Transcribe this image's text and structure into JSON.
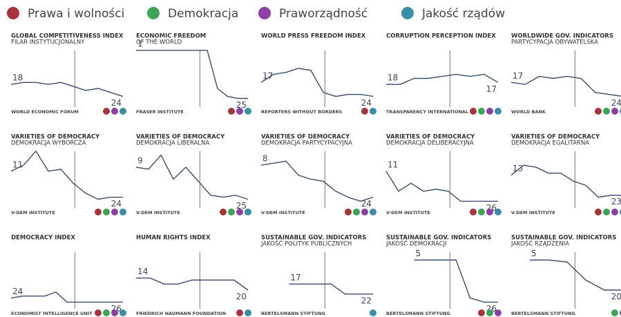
{
  "legend": [
    {
      "name": "Prawa i wolności",
      "color": "#a8343a"
    },
    {
      "name": "Demokracja",
      "color": "#3aa655"
    },
    {
      "name": "Praworządność",
      "color": "#8e3fa3"
    },
    {
      "name": "Jakość rządów",
      "color": "#3a8fa8"
    }
  ],
  "chart_data": [
    {
      "type": "line",
      "title": "GLOBAL COMPETITIVENESS INDEX",
      "subtitle": "FILAR INSTYTUCJONALNY",
      "source": "WORLD ECONOMIC FORUM",
      "values": [
        18,
        17,
        17,
        18,
        17,
        19,
        21,
        20,
        22,
        24
      ],
      "ylim": [
        0,
        30
      ],
      "color": "#3a4a6b",
      "dots": [
        "#a8343a",
        "#8e3fa3",
        "#3a8fa8"
      ]
    },
    {
      "type": "line",
      "title": "ECONOMIC FREEDOM",
      "subtitle": "OF THE WORLD",
      "source": "FRASER INSTITUTE",
      "values": [
        1,
        1,
        1,
        1,
        1,
        1,
        1,
        1,
        20,
        24,
        25,
        25
      ],
      "ylim": [
        0,
        30
      ],
      "color": "#3a4a6b",
      "dots": [
        "#a8343a",
        "#8e3fa3",
        "#3a8fa8"
      ]
    },
    {
      "type": "line",
      "title": "WORLD PRESS FREEDOM INDEX",
      "source": "REPORTERS WITHOUT BORDERS",
      "values": [
        17,
        13,
        12,
        10,
        11,
        22,
        24,
        23,
        23,
        24
      ],
      "ylim": [
        0,
        30
      ],
      "color": "#3a4a6b",
      "dots": [
        "#a8343a",
        "#3a8fa8"
      ]
    },
    {
      "type": "line",
      "title": "CORRUPTION PERCEPTION INDEX",
      "source": "TRANSPARENCY INTERNATIONAL",
      "values": [
        18,
        18,
        15,
        15,
        14,
        13,
        14,
        13,
        17
      ],
      "ylim": [
        0,
        30
      ],
      "color": "#3a4a6b",
      "dots": [
        "#a8343a",
        "#3aa655",
        "#8e3fa3",
        "#3a8fa8"
      ]
    },
    {
      "type": "line",
      "title": "WORLDWIDE GOV. INDICATORS",
      "subtitle": "PARTYCYPACJA OBYWATELSKA",
      "source": "WORLD BANK",
      "values": [
        17,
        18,
        14,
        15,
        14,
        15,
        22,
        23,
        24
      ],
      "ylim": [
        0,
        30
      ],
      "color": "#3a4a6b",
      "dots": [
        "#a8343a",
        "#3aa655",
        "#8e3fa3",
        "#3a8fa8"
      ]
    },
    {
      "type": "line",
      "title": "VARIETIES OF DEMOCRACY",
      "subtitle": "DEMOKRACJA WYBORCZA",
      "source": "V-DEM INSTITUTE",
      "values": [
        11,
        8,
        1,
        11,
        10,
        17,
        22,
        25,
        24,
        24
      ],
      "ylim": [
        0,
        30
      ],
      "color": "#3a4a6b",
      "dots": [
        "#a8343a",
        "#3aa655",
        "#8e3fa3",
        "#3a8fa8"
      ]
    },
    {
      "type": "line",
      "title": "VARIETIES OF DEMOCRACY",
      "subtitle": "DEMOKRACJA LIBERALNA",
      "source": "V-DEM INSTITUTE",
      "values": [
        9,
        10,
        3,
        15,
        9,
        16,
        23,
        24,
        23,
        25
      ],
      "ylim": [
        0,
        30
      ],
      "color": "#3a4a6b",
      "dots": [
        "#a8343a",
        "#3aa655",
        "#8e3fa3",
        "#3a8fa8"
      ]
    },
    {
      "type": "line",
      "title": "VARIETIES OF DEMOCRACY",
      "subtitle": "DEMOKRACJA PARTYCYPACYJNA",
      "source": "V-DEM INSTITUTE",
      "values": [
        8,
        7,
        6,
        13,
        15,
        16,
        21,
        24,
        26,
        24
      ],
      "ylim": [
        0,
        30
      ],
      "color": "#3a4a6b",
      "dots": [
        "#a8343a",
        "#3aa655",
        "#8e3fa3",
        "#3a8fa8"
      ]
    },
    {
      "type": "line",
      "title": "VARIETIES OF DEMOCRACY",
      "subtitle": "DEMOKRACJA DELIBERACYJNA",
      "source": "V-DEM INSTITUTE",
      "values": [
        11,
        21,
        17,
        21,
        20,
        21,
        26,
        26,
        26,
        26
      ],
      "ylim": [
        0,
        30
      ],
      "color": "#3a4a6b",
      "dots": [
        "#a8343a",
        "#3aa655",
        "#8e3fa3",
        "#3a8fa8"
      ]
    },
    {
      "type": "line",
      "title": "VARIETIES OF DEMOCRACY",
      "subtitle": "DEMOKRACJA EGALITARNA",
      "source": "V-DEM INSTITUTE",
      "values": [
        13,
        8,
        9,
        12,
        12,
        16,
        18,
        24,
        23,
        23
      ],
      "ylim": [
        0,
        30
      ],
      "color": "#3a4a6b",
      "dots": [
        "#a8343a",
        "#3aa655",
        "#8e3fa3",
        "#3a8fa8"
      ]
    },
    {
      "type": "line",
      "title": "DEMOCRACY INDEX",
      "source": "ECONOMIST INTELLIGENCE UNIT",
      "values": [
        24,
        23,
        23,
        23,
        21,
        26,
        26,
        26,
        26,
        26,
        26
      ],
      "ylim": [
        0,
        30
      ],
      "color": "#3a4a6b",
      "dots": [
        "#a8343a",
        "#3aa655",
        "#8e3fa3",
        "#3a8fa8"
      ]
    },
    {
      "type": "line",
      "title": "HUMAN RIGHTS INDEX",
      "source": "FRIEDRICH NAUMANN FOUNDATION",
      "values": [
        14,
        14,
        17,
        17,
        15,
        15,
        15,
        15,
        20
      ],
      "ylim": [
        0,
        30
      ],
      "color": "#3a4a6b",
      "dots": [
        "#a8343a",
        "#3a8fa8"
      ]
    },
    {
      "type": "line",
      "title": "SUSTAINABLE GOV. INDICATORS",
      "subtitle": "JAKOŚĆ POLITYK PUBLICZNYCH",
      "source": "BERTELSMANN STIFTUNG",
      "values": [
        null,
        null,
        17,
        17,
        17,
        17,
        22,
        22,
        22
      ],
      "ylim": [
        0,
        30
      ],
      "color": "#3a4a6b",
      "dots": [
        "#3a8fa8"
      ]
    },
    {
      "type": "line",
      "title": "SUSTAINABLE GOV. INDICATORS",
      "subtitle": "JAKOŚĆ DEMOKRACJI",
      "source": "BERTELSMANN STIFTUNG",
      "values": [
        null,
        null,
        5,
        5,
        5,
        5,
        24,
        26,
        26
      ],
      "ylim": [
        0,
        30
      ],
      "color": "#3a4a6b",
      "dots": [
        "#a8343a",
        "#3aa655",
        "#8e3fa3"
      ]
    },
    {
      "type": "line",
      "title": "SUSTAINABLE GOV. INDICATORS",
      "subtitle": "JAKOŚĆ RZĄDZENIA",
      "source": "BERTELSMANN STIFTUNG",
      "values": [
        null,
        5,
        5,
        6,
        15,
        20,
        20
      ],
      "ylim": [
        0,
        30
      ],
      "color": "#3a4a6b",
      "dots": [
        "#3aa655",
        "#8e3fa3"
      ]
    }
  ]
}
